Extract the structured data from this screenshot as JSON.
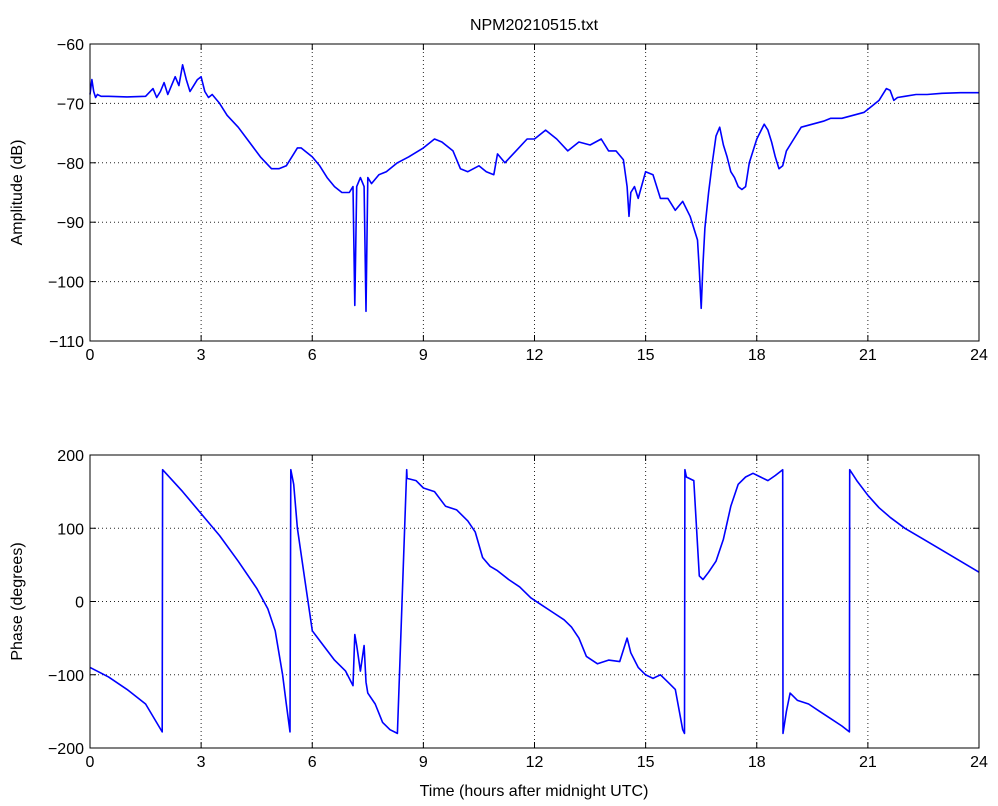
{
  "chart_data": [
    {
      "type": "line",
      "title": "NPM20210515.txt",
      "xlabel": "",
      "ylabel": "Amplitude (dB)",
      "xlim": [
        0,
        24
      ],
      "ylim": [
        -110,
        -60
      ],
      "xticks": [
        "0",
        "3",
        "6",
        "9",
        "12",
        "15",
        "18",
        "21",
        "24"
      ],
      "yticks": [
        "−60",
        "−70",
        "−80",
        "−90",
        "−100",
        "−110"
      ],
      "grid": true,
      "color": "#0000ff",
      "series": [
        {
          "x": [
            0,
            0.05,
            0.1,
            0.15,
            0.2,
            0.3,
            0.5,
            1.0,
            1.5,
            1.7,
            1.8,
            1.9,
            2.0,
            2.1,
            2.2,
            2.3,
            2.4,
            2.5,
            2.6,
            2.7,
            2.8,
            2.9,
            3.0,
            3.1,
            3.2,
            3.3,
            3.5,
            3.7,
            4.0,
            4.3,
            4.6,
            4.9,
            5.1,
            5.3,
            5.5,
            5.6,
            5.7,
            5.8,
            6.0,
            6.2,
            6.4,
            6.6,
            6.8,
            7.0,
            7.1,
            7.15,
            7.2,
            7.3,
            7.4,
            7.45,
            7.5,
            7.6,
            7.8,
            8.0,
            8.3,
            8.6,
            9.0,
            9.3,
            9.5,
            9.8,
            10.0,
            10.2,
            10.5,
            10.7,
            10.9,
            11.0,
            11.2,
            11.5,
            11.8,
            12.0,
            12.3,
            12.6,
            12.9,
            13.2,
            13.5,
            13.8,
            14.0,
            14.2,
            14.4,
            14.5,
            14.55,
            14.6,
            14.7,
            14.8,
            15.0,
            15.2,
            15.4,
            15.6,
            15.8,
            16.0,
            16.2,
            16.4,
            16.45,
            16.5,
            16.55,
            16.6,
            16.7,
            16.8,
            16.9,
            17.0,
            17.1,
            17.2,
            17.3,
            17.4,
            17.5,
            17.6,
            17.7,
            17.8,
            18.0,
            18.2,
            18.3,
            18.4,
            18.5,
            18.6,
            18.7,
            18.8,
            19.0,
            19.2,
            19.5,
            19.8,
            20.0,
            20.3,
            20.6,
            20.9,
            21.1,
            21.3,
            21.5,
            21.6,
            21.7,
            21.8,
            22.0,
            22.3,
            22.6,
            23.0,
            23.5,
            24.0
          ],
          "values": [
            -68.5,
            -66,
            -68,
            -69,
            -68.5,
            -68.8,
            -68.8,
            -68.9,
            -68.8,
            -67.5,
            -69,
            -68,
            -66.5,
            -68.5,
            -67,
            -65.5,
            -67,
            -63.5,
            -66,
            -68,
            -67,
            -66,
            -65.5,
            -68,
            -69,
            -68.5,
            -70,
            -72,
            -74,
            -76.5,
            -79,
            -81,
            -81,
            -80.5,
            -78.5,
            -77.5,
            -77.5,
            -78,
            -79,
            -80.5,
            -82.5,
            -84,
            -85,
            -85,
            -84,
            -104,
            -84,
            -82.5,
            -84,
            -105,
            -82.5,
            -83.5,
            -82,
            -81.5,
            -80,
            -79,
            -77.5,
            -76,
            -76.5,
            -78,
            -81,
            -81.5,
            -80.5,
            -81.5,
            -82,
            -78.5,
            -80,
            -78,
            -76,
            -76,
            -74.5,
            -76,
            -78,
            -76.5,
            -77,
            -76,
            -78,
            -78,
            -79.5,
            -84,
            -89,
            -85,
            -84,
            -86,
            -81.5,
            -82,
            -86,
            -86,
            -88,
            -86.5,
            -89,
            -93,
            -98,
            -104.5,
            -97,
            -91,
            -85,
            -80,
            -75.5,
            -74,
            -77,
            -79,
            -81.5,
            -82.5,
            -84,
            -84.5,
            -84,
            -80,
            -76,
            -73.5,
            -74.5,
            -76.5,
            -79,
            -81,
            -80.5,
            -78,
            -76,
            -74,
            -73.5,
            -73,
            -72.5,
            -72.5,
            -72,
            -71.5,
            -70.5,
            -69.5,
            -67.5,
            -67.8,
            -69.5,
            -69,
            -68.8,
            -68.5,
            -68.5,
            -68.3,
            -68.2,
            -68.2
          ]
        }
      ]
    },
    {
      "type": "line",
      "title": "",
      "xlabel": "Time (hours after midnight UTC)",
      "ylabel": "Phase (degrees)",
      "xlim": [
        0,
        24
      ],
      "ylim": [
        -200,
        200
      ],
      "xticks": [
        "0",
        "3",
        "6",
        "9",
        "12",
        "15",
        "18",
        "21",
        "24"
      ],
      "yticks": [
        "200",
        "100",
        "0",
        "−100",
        "−200"
      ],
      "grid": true,
      "color": "#0000ff",
      "series": [
        {
          "x": [
            0,
            0.5,
            1.0,
            1.5,
            1.95,
            1.96,
            2.5,
            3.0,
            3.5,
            4.0,
            4.5,
            4.8,
            5.0,
            5.2,
            5.3,
            5.4,
            5.42,
            5.5,
            5.6,
            5.8,
            6.0,
            6.3,
            6.6,
            6.9,
            7.0,
            7.1,
            7.15,
            7.2,
            7.3,
            7.4,
            7.45,
            7.5,
            7.7,
            7.9,
            8.1,
            8.3,
            8.55,
            8.56,
            8.8,
            9.0,
            9.3,
            9.6,
            9.9,
            10.2,
            10.4,
            10.6,
            10.8,
            11.0,
            11.3,
            11.6,
            11.9,
            12.2,
            12.5,
            12.8,
            13.0,
            13.2,
            13.4,
            13.7,
            14.0,
            14.3,
            14.5,
            14.6,
            14.8,
            15.0,
            15.2,
            15.4,
            15.6,
            15.8,
            16.0,
            16.05,
            16.06,
            16.1,
            16.3,
            16.45,
            16.55,
            16.7,
            16.9,
            17.1,
            17.3,
            17.5,
            17.7,
            17.9,
            18.1,
            18.3,
            18.5,
            18.7,
            18.71,
            18.8,
            18.9,
            19.1,
            19.4,
            19.7,
            20.0,
            20.3,
            20.5,
            20.51,
            20.7,
            21.0,
            21.3,
            21.6,
            22.0,
            22.5,
            23.0,
            23.5,
            24.0
          ],
          "values": [
            -90,
            -103,
            -120,
            -140,
            -178,
            180,
            150,
            120,
            90,
            55,
            18,
            -10,
            -40,
            -100,
            -140,
            -178,
            180,
            160,
            100,
            30,
            -40,
            -60,
            -80,
            -95,
            -105,
            -115,
            -45,
            -60,
            -95,
            -60,
            -110,
            -125,
            -140,
            -165,
            -175,
            -180,
            180,
            168,
            165,
            155,
            150,
            130,
            125,
            110,
            95,
            60,
            48,
            42,
            30,
            20,
            5,
            -5,
            -15,
            -25,
            -35,
            -50,
            -75,
            -85,
            -80,
            -82,
            -50,
            -70,
            -90,
            -100,
            -105,
            -100,
            -110,
            -120,
            -175,
            -180,
            180,
            170,
            165,
            35,
            30,
            40,
            55,
            85,
            130,
            160,
            170,
            175,
            170,
            165,
            172,
            180,
            -180,
            -150,
            -125,
            -135,
            -140,
            -150,
            -160,
            -170,
            -178,
            180,
            165,
            145,
            128,
            115,
            100,
            85,
            70,
            55,
            40
          ]
        }
      ]
    }
  ]
}
